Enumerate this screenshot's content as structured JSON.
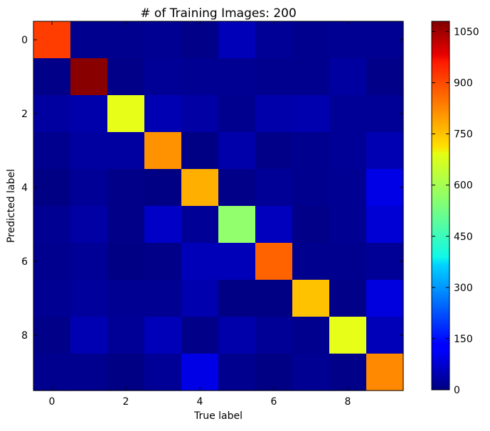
{
  "chart_data": {
    "type": "heatmap",
    "title": "# of Training Images: 200",
    "xlabel": "True label",
    "ylabel": "Predicted label",
    "x_tick_labels": [
      "0",
      "2",
      "4",
      "6",
      "8"
    ],
    "y_tick_labels": [
      "0",
      "2",
      "4",
      "6",
      "8"
    ],
    "colormap": "jet",
    "vmin": 0,
    "vmax": 1080,
    "colorbar_ticks": [
      "0",
      "150",
      "300",
      "450",
      "600",
      "750",
      "900",
      "1050"
    ],
    "matrix": [
      [
        880,
        15,
        15,
        20,
        10,
        60,
        25,
        15,
        20,
        20
      ],
      [
        10,
        1070,
        10,
        25,
        20,
        20,
        15,
        15,
        35,
        10
      ],
      [
        35,
        45,
        650,
        55,
        40,
        15,
        45,
        50,
        25,
        25
      ],
      [
        15,
        35,
        35,
        790,
        5,
        45,
        10,
        15,
        25,
        55
      ],
      [
        5,
        25,
        10,
        5,
        760,
        10,
        25,
        15,
        20,
        110
      ],
      [
        20,
        40,
        10,
        75,
        25,
        560,
        65,
        10,
        20,
        90
      ],
      [
        15,
        25,
        5,
        10,
        60,
        60,
        840,
        15,
        15,
        25
      ],
      [
        20,
        30,
        20,
        20,
        50,
        5,
        5,
        740,
        10,
        100
      ],
      [
        10,
        55,
        25,
        60,
        10,
        45,
        25,
        15,
        650,
        60
      ],
      [
        15,
        15,
        5,
        25,
        110,
        15,
        5,
        20,
        10,
        800
      ]
    ]
  }
}
